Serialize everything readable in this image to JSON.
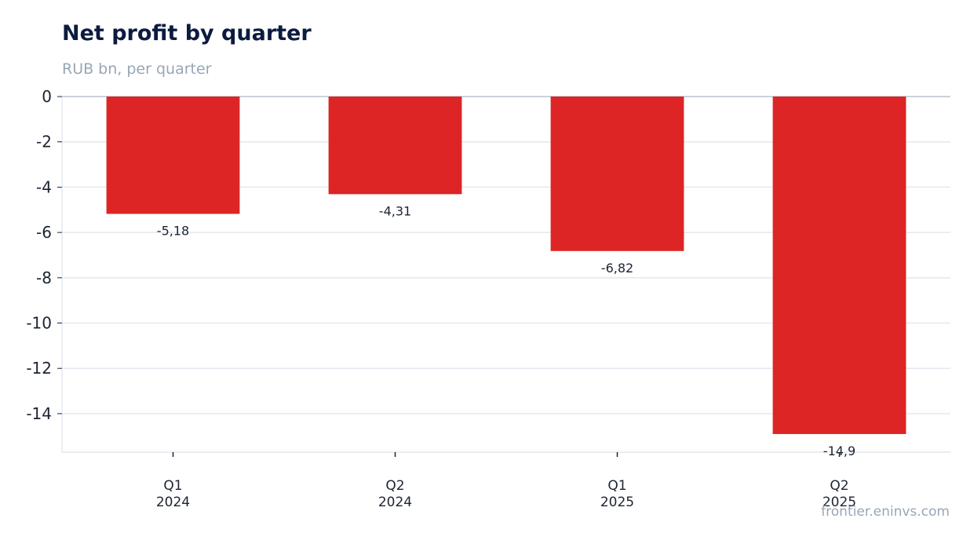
{
  "chart_data": {
    "type": "bar",
    "title": "Net profit by quarter",
    "subtitle": "RUB bn, per quarter",
    "categories": [
      [
        "Q1",
        "2024"
      ],
      [
        "Q2",
        "2024"
      ],
      [
        "Q1",
        "2025"
      ],
      [
        "Q2",
        "2025"
      ]
    ],
    "values": [
      -5.18,
      -4.31,
      -6.82,
      -14.9
    ],
    "data_labels": [
      "-5,18",
      "-4,31",
      "-6,82",
      "-14,9"
    ],
    "yticks": [
      0,
      -2,
      -4,
      -6,
      -8,
      -10,
      -12,
      -14
    ],
    "ytick_labels": [
      "0",
      "-2",
      "-4",
      "-6",
      "-8",
      "-10",
      "-12",
      "-14"
    ],
    "ylim": [
      -15.7,
      0
    ],
    "grid": true,
    "legend": "none",
    "colors": {
      "bar": "#dd2525",
      "grid": "#e3e8ef",
      "zero_line": "#98a6b5"
    }
  },
  "source": "frontier.eninvs.com"
}
